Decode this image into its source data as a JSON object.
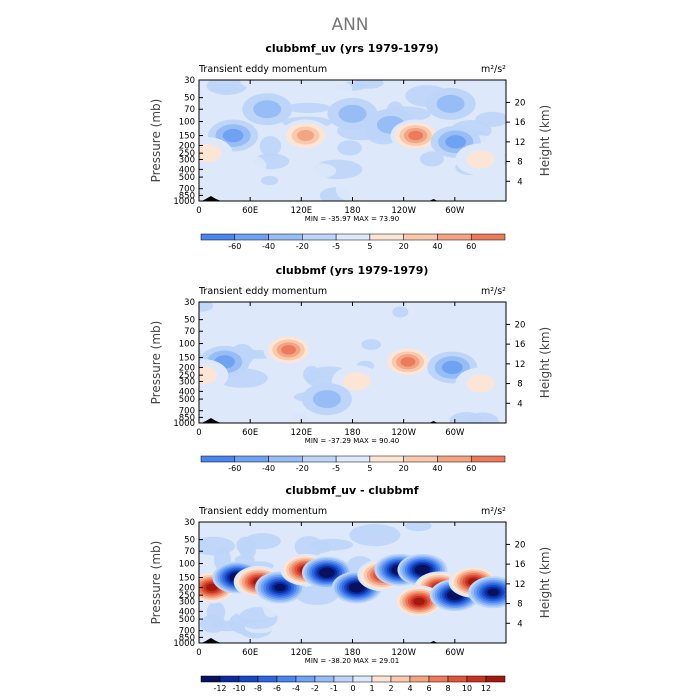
{
  "figure": {
    "title": "ANN"
  },
  "chart_data": [
    {
      "type": "heatmap",
      "title": "clubbmf_uv (yrs 1979-1979)",
      "subtitle": "Transient eddy momentum",
      "units": "m²/s²",
      "ylabel": "Pressure (mb)",
      "y2label": "Height (km)",
      "x_ticks": [
        "0",
        "60E",
        "120E",
        "180",
        "120W",
        "60W"
      ],
      "y_ticks": [
        "30",
        "50",
        "70",
        "100",
        "150",
        "200",
        "250",
        "300",
        "400",
        "500",
        "700",
        "850",
        "1000"
      ],
      "y2_ticks": [
        "20",
        "16",
        "12",
        "8",
        "4"
      ],
      "ylim": [
        1000,
        30
      ],
      "min": -35.97,
      "max": 73.9,
      "min_max_text": "MIN = -35.97   MAX =  73.90",
      "colorbar_levels": [
        "-60",
        "-40",
        "-20",
        "-5",
        "5",
        "20",
        "40",
        "60"
      ],
      "colors": [
        "#08115f",
        "#0a2c9b",
        "#1747c7",
        "#2e66e0",
        "#4a84ee",
        "#6fa2f3",
        "#97bdf6",
        "#bdd5f8",
        "#dde9fb",
        "#fde5d6",
        "#f9c9ad",
        "#f3a483",
        "#eb7b5b",
        "#e0533a",
        "#c93221",
        "#a3180f",
        "#7a0c08"
      ],
      "features": [
        {
          "lon": 40,
          "p": 150,
          "v": -25
        },
        {
          "lon": 125,
          "p": 150,
          "v": 55
        },
        {
          "lon": 225,
          "p": 110,
          "v": -12
        },
        {
          "lon": 254,
          "p": 150,
          "v": 74
        },
        {
          "lon": 301,
          "p": 180,
          "v": -36
        },
        {
          "lon": 330,
          "p": 300,
          "v": 18
        },
        {
          "lon": 10,
          "p": 250,
          "v": 10
        },
        {
          "lon": 180,
          "p": 80,
          "v": -8
        },
        {
          "lon": 80,
          "p": 70,
          "v": -8
        },
        {
          "lon": 295,
          "p": 60,
          "v": -9
        }
      ]
    },
    {
      "type": "heatmap",
      "title": "clubbmf (yrs 1979-1979)",
      "subtitle": "Transient eddy momentum",
      "units": "m²/s²",
      "ylabel": "Pressure (mb)",
      "y2label": "Height (km)",
      "x_ticks": [
        "0",
        "60E",
        "120E",
        "180",
        "120W",
        "60W"
      ],
      "y_ticks": [
        "30",
        "50",
        "70",
        "100",
        "150",
        "200",
        "250",
        "300",
        "400",
        "500",
        "700",
        "850",
        "1000"
      ],
      "y2_ticks": [
        "20",
        "16",
        "12",
        "8",
        "4"
      ],
      "ylim": [
        1000,
        30
      ],
      "min": -37.29,
      "max": 90.4,
      "min_max_text": "MIN = -37.29   MAX =  90.40",
      "colorbar_levels": [
        "-60",
        "-40",
        "-20",
        "-5",
        "5",
        "20",
        "40",
        "60"
      ],
      "colors": [
        "#08115f",
        "#0a2c9b",
        "#1747c7",
        "#2e66e0",
        "#4a84ee",
        "#6fa2f3",
        "#97bdf6",
        "#bdd5f8",
        "#dde9fb",
        "#fde5d6",
        "#f9c9ad",
        "#f3a483",
        "#eb7b5b",
        "#e0533a",
        "#c93221",
        "#a3180f",
        "#7a0c08"
      ],
      "features": [
        {
          "lon": 30,
          "p": 170,
          "v": -30
        },
        {
          "lon": 105,
          "p": 120,
          "v": 60
        },
        {
          "lon": 245,
          "p": 170,
          "v": 90
        },
        {
          "lon": 297,
          "p": 200,
          "v": -37
        },
        {
          "lon": 330,
          "p": 320,
          "v": 15
        },
        {
          "lon": 5,
          "p": 250,
          "v": 10
        },
        {
          "lon": 185,
          "p": 300,
          "v": 8
        },
        {
          "lon": 150,
          "p": 500,
          "v": -6
        }
      ]
    },
    {
      "type": "heatmap",
      "title": "clubbmf_uv - clubbmf",
      "subtitle": "Transient eddy momentum",
      "units": "m²/s²",
      "ylabel": "Pressure (mb)",
      "y2label": "Height (km)",
      "x_ticks": [
        "0",
        "60E",
        "120E",
        "180",
        "120W",
        "60W"
      ],
      "y_ticks": [
        "30",
        "50",
        "70",
        "100",
        "150",
        "200",
        "250",
        "300",
        "400",
        "500",
        "700",
        "850",
        "1000"
      ],
      "y2_ticks": [
        "20",
        "16",
        "12",
        "8",
        "4"
      ],
      "ylim": [
        1000,
        30
      ],
      "min": -38.2,
      "max": 29.01,
      "min_max_text": "MIN = -38.20   MAX =  29.01",
      "colorbar_levels": [
        "-12",
        "-10",
        "-8",
        "-6",
        "-4",
        "-2",
        "-1",
        "0",
        "1",
        "2",
        "4",
        "6",
        "8",
        "10",
        "12"
      ],
      "colors": [
        "#08115f",
        "#0a2c9b",
        "#1747c7",
        "#2e66e0",
        "#4a84ee",
        "#6fa2f3",
        "#97bdf6",
        "#bdd5f8",
        "#dde9fb",
        "#fde5d6",
        "#f9c9ad",
        "#f3a483",
        "#eb7b5b",
        "#e0533a",
        "#c93221",
        "#a3180f",
        "#7a0c08"
      ],
      "features": [
        {
          "lon": 15,
          "p": 200,
          "v": 12
        },
        {
          "lon": 45,
          "p": 150,
          "v": -15
        },
        {
          "lon": 70,
          "p": 170,
          "v": 18
        },
        {
          "lon": 95,
          "p": 200,
          "v": -12
        },
        {
          "lon": 125,
          "p": 120,
          "v": 14
        },
        {
          "lon": 150,
          "p": 130,
          "v": -14
        },
        {
          "lon": 185,
          "p": 200,
          "v": -38
        },
        {
          "lon": 215,
          "p": 140,
          "v": 10
        },
        {
          "lon": 235,
          "p": 120,
          "v": -30
        },
        {
          "lon": 262,
          "p": 120,
          "v": -18
        },
        {
          "lon": 282,
          "p": 200,
          "v": 15
        },
        {
          "lon": 258,
          "p": 300,
          "v": 12
        },
        {
          "lon": 300,
          "p": 250,
          "v": -15
        },
        {
          "lon": 322,
          "p": 170,
          "v": 14
        },
        {
          "lon": 345,
          "p": 230,
          "v": -12
        }
      ]
    }
  ]
}
